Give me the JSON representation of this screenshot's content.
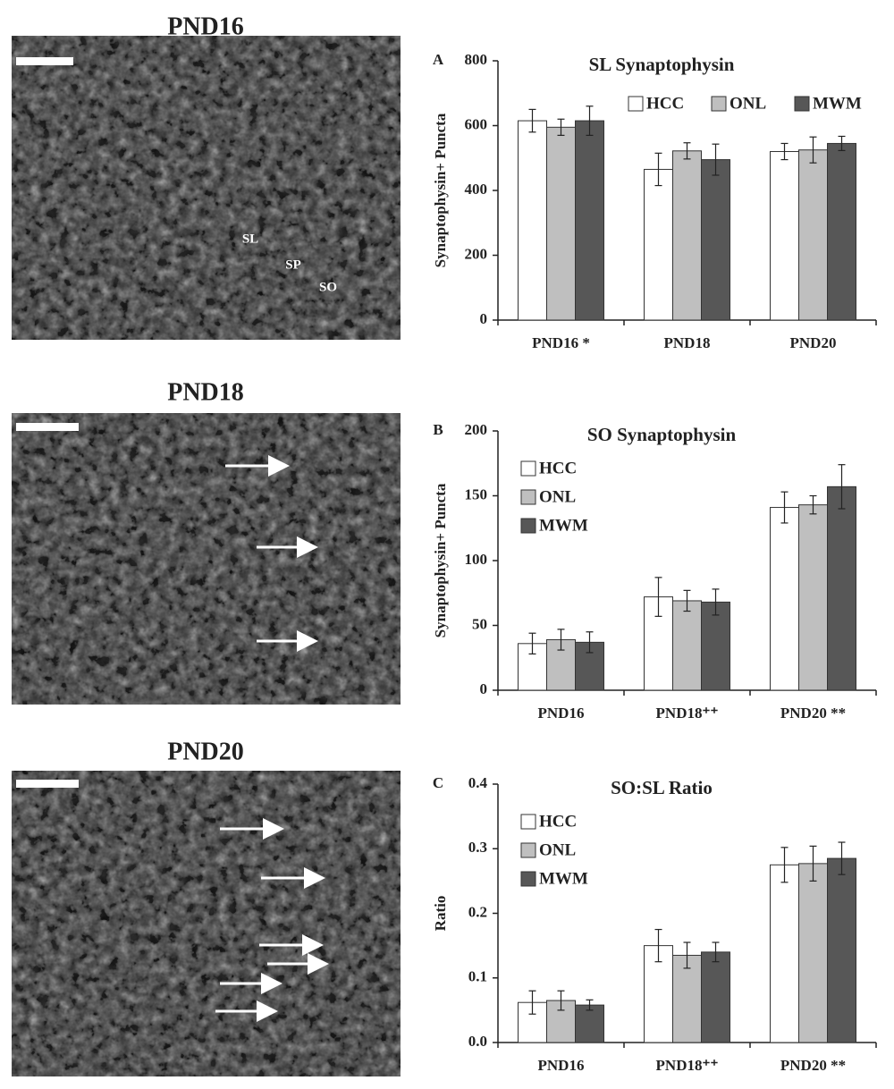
{
  "images": [
    {
      "title": "PND16",
      "labels": [
        "SL",
        "SP",
        "SO"
      ]
    },
    {
      "title": "PND18"
    },
    {
      "title": "PND20"
    }
  ],
  "chart_data": [
    {
      "type": "bar",
      "panel": "A",
      "title": "SL Synaptophysin",
      "y_label": "Synaptophysin+  Puncta",
      "categories": [
        "PND16 *",
        "PND18",
        "PND20"
      ],
      "series": [
        {
          "name": "HCC",
          "color": "#ffffff",
          "values": [
            615,
            465,
            520
          ],
          "errors": [
            35,
            50,
            25
          ]
        },
        {
          "name": "ONL",
          "color": "#bfbfbf",
          "values": [
            595,
            522,
            525
          ],
          "errors": [
            25,
            25,
            40
          ]
        },
        {
          "name": "MWM",
          "color": "#575757",
          "values": [
            615,
            495,
            545
          ],
          "errors": [
            45,
            48,
            22
          ]
        }
      ],
      "ylim": [
        0,
        800
      ],
      "yticks": [
        0,
        200,
        400,
        600,
        800
      ],
      "legend": "top-right"
    },
    {
      "type": "bar",
      "panel": "B",
      "title": "SO Synaptophysin",
      "y_label": "Synaptophysin+  Puncta",
      "categories": [
        "PND16",
        "PND18⁺⁺",
        "PND20 **"
      ],
      "series": [
        {
          "name": "HCC",
          "color": "#ffffff",
          "values": [
            36,
            72,
            141
          ],
          "errors": [
            8,
            15,
            12
          ]
        },
        {
          "name": "ONL",
          "color": "#bfbfbf",
          "values": [
            39,
            69,
            143
          ],
          "errors": [
            8,
            8,
            7
          ]
        },
        {
          "name": "MWM",
          "color": "#575757",
          "values": [
            37,
            68,
            157
          ],
          "errors": [
            8,
            10,
            17
          ]
        }
      ],
      "ylim": [
        0,
        200
      ],
      "yticks": [
        0,
        50,
        100,
        150,
        200
      ],
      "legend": "top-left"
    },
    {
      "type": "bar",
      "panel": "C",
      "title": "SO:SL Ratio",
      "y_label": "Ratio",
      "categories": [
        "PND16",
        "PND18⁺⁺",
        "PND20 **"
      ],
      "series": [
        {
          "name": "HCC",
          "color": "#ffffff",
          "values": [
            0.062,
            0.15,
            0.275
          ],
          "errors": [
            0.018,
            0.025,
            0.027
          ]
        },
        {
          "name": "ONL",
          "color": "#bfbfbf",
          "values": [
            0.065,
            0.135,
            0.277
          ],
          "errors": [
            0.015,
            0.02,
            0.027
          ]
        },
        {
          "name": "MWM",
          "color": "#575757",
          "values": [
            0.058,
            0.14,
            0.285
          ],
          "errors": [
            0.008,
            0.015,
            0.025
          ]
        }
      ],
      "ylim": [
        0,
        0.4
      ],
      "yticks": [
        {
          "value": 0,
          "label": "0.0"
        },
        0.1,
        0.2,
        0.3,
        0.4
      ],
      "legend": "top-left"
    }
  ]
}
